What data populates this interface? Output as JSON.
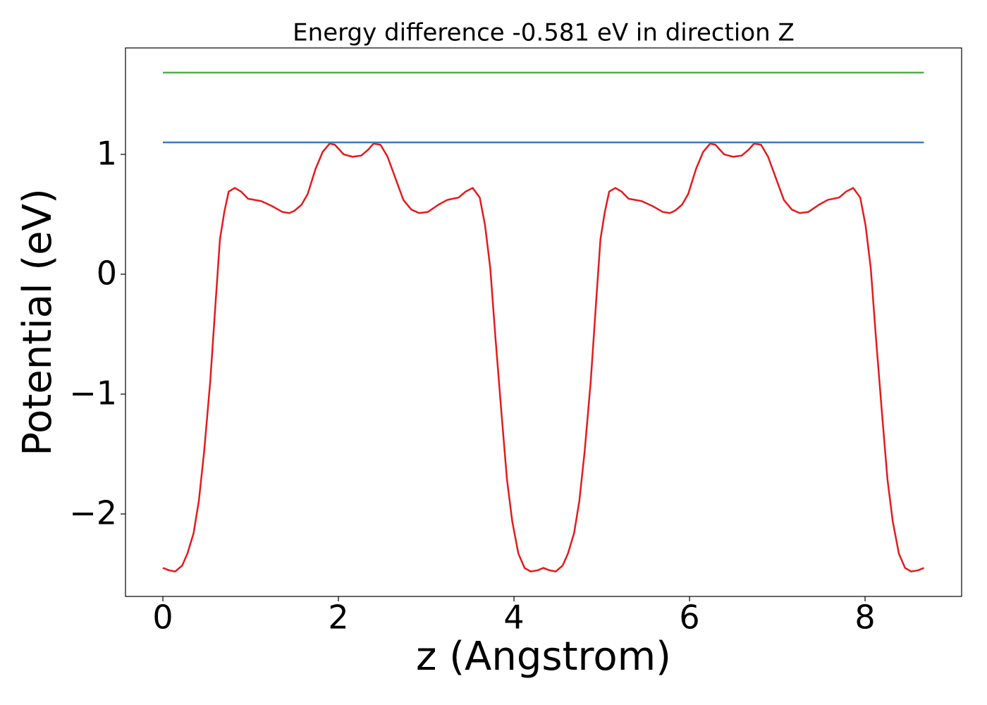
{
  "chart_data": {
    "type": "line",
    "title": "Energy difference -0.581 eV in direction Z",
    "x_label": "z (Angstrom)",
    "y_label": "Potential (eV)",
    "xlim": [
      -0.426,
      9.1
    ],
    "ylim": [
      -2.688,
      1.888
    ],
    "xticks": [
      0,
      2,
      4,
      6,
      8
    ],
    "yticks": [
      {
        "value": -2,
        "label": "−2"
      },
      {
        "value": -1,
        "label": "−1"
      },
      0,
      1
    ],
    "series": [
      {
        "color": "#e41a1c",
        "x": [
          0,
          0.07,
          0.14,
          0.22,
          0.28,
          0.35,
          0.41,
          0.47,
          0.54,
          0.6,
          0.65,
          0.7,
          0.75,
          0.82,
          0.89,
          0.97,
          1.12,
          1.24,
          1.36,
          1.44,
          1.5,
          1.58,
          1.65,
          1.74,
          1.82,
          1.9,
          1.96,
          2.06,
          2.16,
          2.26,
          2.34,
          2.4,
          2.48,
          2.56,
          2.64,
          2.74,
          2.83,
          2.92,
          3.02,
          3.14,
          3.24,
          3.37,
          3.45,
          3.53,
          3.61,
          3.67,
          3.73,
          3.79,
          3.86,
          3.92,
          3.98,
          4.05,
          4.12,
          4.19,
          4.27,
          4.335,
          4.405,
          4.475,
          4.555,
          4.615,
          4.685,
          4.745,
          4.805,
          4.875,
          4.935,
          4.985,
          5.035,
          5.085,
          5.155,
          5.225,
          5.305,
          5.455,
          5.575,
          5.695,
          5.775,
          5.835,
          5.915,
          5.985,
          6.075,
          6.155,
          6.235,
          6.295,
          6.395,
          6.495,
          6.595,
          6.675,
          6.735,
          6.815,
          6.895,
          6.975,
          7.075,
          7.165,
          7.255,
          7.355,
          7.475,
          7.575,
          7.705,
          7.785,
          7.865,
          7.945,
          8.005,
          8.065,
          8.125,
          8.195,
          8.255,
          8.315,
          8.385,
          8.455,
          8.525,
          8.605,
          8.67
        ],
        "values": [
          -2.45,
          -2.47,
          -2.48,
          -2.43,
          -2.33,
          -2.16,
          -1.89,
          -1.48,
          -0.89,
          -0.24,
          0.29,
          0.52,
          0.69,
          0.72,
          0.69,
          0.63,
          0.61,
          0.57,
          0.52,
          0.51,
          0.53,
          0.58,
          0.67,
          0.88,
          1.02,
          1.09,
          1.08,
          1.0,
          0.98,
          0.99,
          1.04,
          1.09,
          1.08,
          0.98,
          0.82,
          0.62,
          0.54,
          0.51,
          0.52,
          0.58,
          0.62,
          0.64,
          0.69,
          0.72,
          0.64,
          0.41,
          0.05,
          -0.54,
          -1.18,
          -1.71,
          -2.06,
          -2.33,
          -2.45,
          -2.48,
          -2.47,
          -2.45,
          -2.47,
          -2.48,
          -2.43,
          -2.33,
          -2.16,
          -1.89,
          -1.48,
          -0.89,
          -0.24,
          0.29,
          0.52,
          0.69,
          0.72,
          0.69,
          0.63,
          0.61,
          0.57,
          0.52,
          0.51,
          0.53,
          0.58,
          0.67,
          0.88,
          1.02,
          1.09,
          1.08,
          1.0,
          0.98,
          0.99,
          1.04,
          1.09,
          1.08,
          0.98,
          0.82,
          0.62,
          0.54,
          0.51,
          0.52,
          0.58,
          0.62,
          0.64,
          0.69,
          0.72,
          0.64,
          0.41,
          0.05,
          -0.54,
          -1.18,
          -1.71,
          -2.06,
          -2.33,
          -2.45,
          -2.48,
          -2.47,
          -2.45
        ]
      },
      {
        "color": "#377eb8",
        "x": [
          0,
          8.67
        ],
        "values": [
          1.1,
          1.1
        ]
      },
      {
        "color": "#4daf4a",
        "x": [
          0,
          8.67
        ],
        "values": [
          1.682,
          1.682
        ]
      }
    ]
  }
}
